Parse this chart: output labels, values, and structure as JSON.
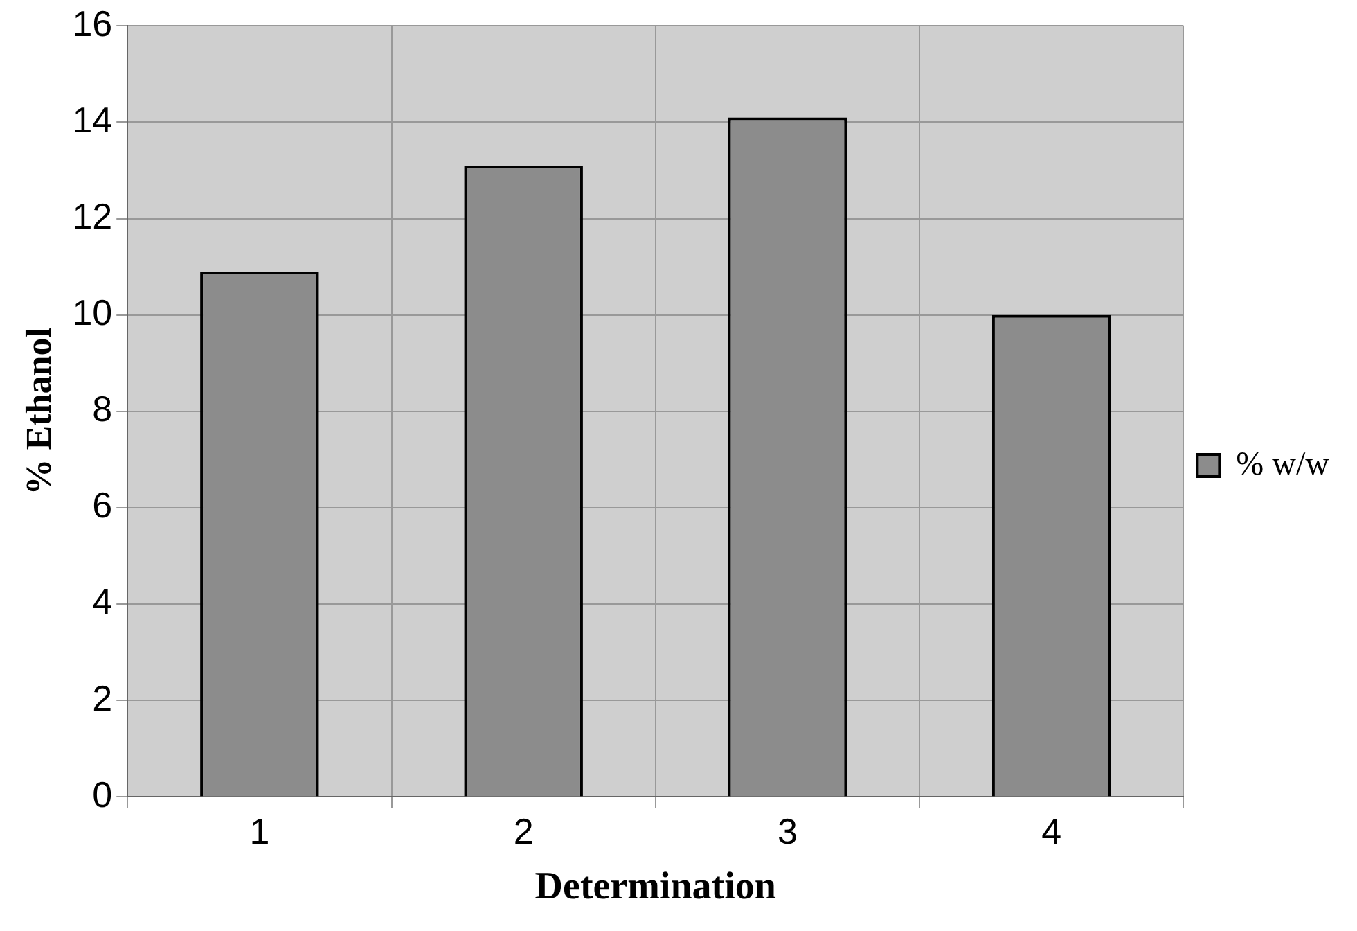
{
  "chart_data": {
    "type": "bar",
    "xlabel": "Determination",
    "ylabel": "% Ethanol",
    "categories": [
      "1",
      "2",
      "3",
      "4"
    ],
    "series": [
      {
        "name": "% w/w",
        "color": "#8c8c8c",
        "values": [
          10.9,
          13.1,
          14.1,
          10.0
        ]
      }
    ],
    "ylim": [
      0,
      16
    ],
    "yticks": [
      0,
      2,
      4,
      6,
      8,
      10,
      12,
      14,
      16
    ],
    "grid": true,
    "legend": "right"
  }
}
